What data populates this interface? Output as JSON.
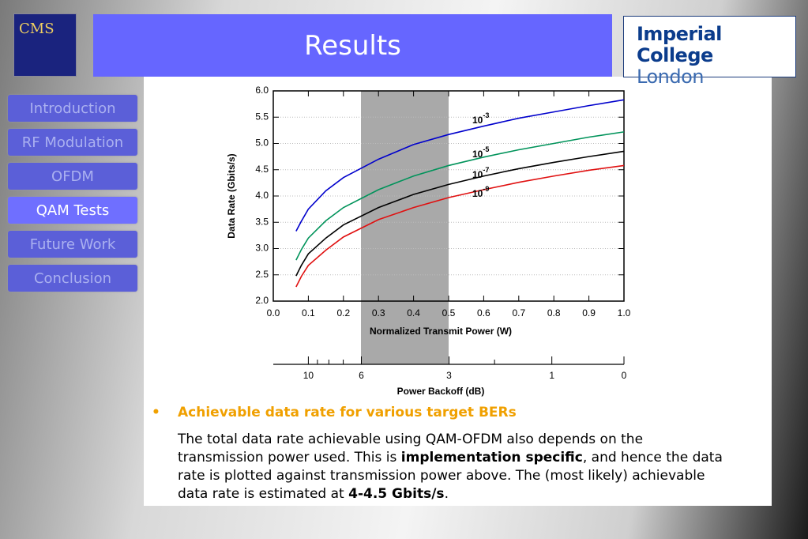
{
  "header": {
    "title": "Results",
    "logo_left": "CMS",
    "logo_right_line1": "Imperial College",
    "logo_right_line2": "London"
  },
  "nav": {
    "items": [
      "Introduction",
      "RF Modulation",
      "OFDM",
      "QAM Tests",
      "Future Work",
      "Conclusion"
    ],
    "active": 3
  },
  "chart_data": {
    "type": "line",
    "y_label": "Data Rate (Gbits/s)",
    "x_label": "Normalized Transmit Power (W)",
    "x": [
      0.065,
      0.08,
      0.1,
      0.15,
      0.2,
      0.3,
      0.4,
      0.5,
      0.6,
      0.7,
      0.8,
      0.9,
      1.0
    ],
    "series": [
      {
        "name_base": "10",
        "name_exp": "-3",
        "color": "#0000cc",
        "values": [
          3.33,
          3.52,
          3.75,
          4.1,
          4.35,
          4.7,
          4.98,
          5.17,
          5.33,
          5.48,
          5.6,
          5.72,
          5.83
        ]
      },
      {
        "name_base": "10",
        "name_exp": "-5",
        "color": "#00935a",
        "values": [
          2.78,
          2.98,
          3.2,
          3.53,
          3.78,
          4.12,
          4.38,
          4.58,
          4.74,
          4.88,
          5.0,
          5.12,
          5.22
        ]
      },
      {
        "name_base": "10",
        "name_exp": "-7",
        "color": "#000000",
        "values": [
          2.48,
          2.68,
          2.9,
          3.2,
          3.45,
          3.78,
          4.03,
          4.22,
          4.38,
          4.52,
          4.64,
          4.75,
          4.85
        ]
      },
      {
        "name_base": "10",
        "name_exp": "-9",
        "color": "#e01010",
        "values": [
          2.27,
          2.47,
          2.68,
          2.97,
          3.22,
          3.55,
          3.78,
          3.97,
          4.12,
          4.26,
          4.38,
          4.49,
          4.58
        ]
      }
    ],
    "xlim": [
      0,
      1
    ],
    "xticks": [
      {
        "value": 0,
        "label": "0.0"
      },
      0.1,
      0.2,
      0.3,
      0.4,
      0.5,
      0.6,
      0.7,
      0.8,
      0.9,
      {
        "value": 1,
        "label": "1.0"
      }
    ],
    "ylim": [
      2,
      6
    ],
    "yticks": [
      {
        "value": 2,
        "label": "2.0"
      },
      2.5,
      {
        "value": 3,
        "label": "3.0"
      },
      3.5,
      {
        "value": 4,
        "label": "4.0"
      },
      4.5,
      {
        "value": 5,
        "label": "5.0"
      },
      5.5,
      {
        "value": 6,
        "label": "6.0"
      }
    ],
    "grid": true,
    "shaded_region": [
      0.25,
      0.5
    ],
    "x2_label": "Power Backoff (dB)",
    "x2scale": "backoff_db",
    "x2ticks": [
      10,
      6,
      3,
      1,
      0
    ],
    "x2minor_ticks": [
      9,
      8,
      7,
      2
    ]
  },
  "text": {
    "bullet": "Achievable data rate for various target BERs",
    "paragraph": [
      {
        "text": "The total data rate achievable using QAM-OFDM also depends on the transmission power used. This is ",
        "bold": false
      },
      {
        "text": "implementation specific",
        "bold": true
      },
      {
        "text": ", and hence the data rate is plotted against transmission power above. The (most likely) achievable data rate is estimated at ",
        "bold": false
      },
      {
        "text": "4-4.5 Gbits/s",
        "bold": true
      },
      {
        "text": ".",
        "bold": false
      }
    ]
  }
}
